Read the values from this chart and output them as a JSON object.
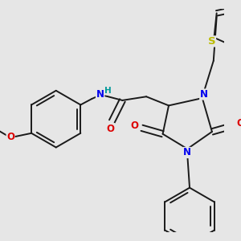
{
  "bg_color": "#e6e6e6",
  "bond_color": "#1a1a1a",
  "bond_width": 1.4,
  "dbo": 0.012,
  "atom_colors": {
    "N": "#0000ee",
    "O": "#dd0000",
    "S": "#bbbb00",
    "H": "#009999",
    "C": "#1a1a1a"
  },
  "font_size": 7.5,
  "fig_size": [
    3.0,
    3.0
  ],
  "dpi": 100
}
